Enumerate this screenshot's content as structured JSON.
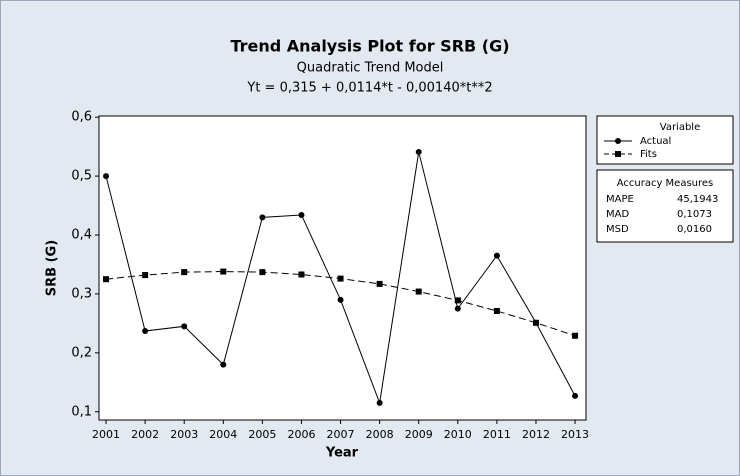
{
  "chart_data": {
    "type": "line",
    "title": "Trend Analysis Plot for SRB (G)",
    "subtitle": "Quadratic Trend Model",
    "equation": "Yt = 0,315 + 0,0114*t - 0,00140*t**2",
    "x_label": "Year",
    "y_label": "SRB (G)",
    "x": [
      2001,
      2002,
      2003,
      2004,
      2005,
      2006,
      2007,
      2008,
      2009,
      2010,
      2011,
      2012,
      2013
    ],
    "series": [
      {
        "name": "Actual",
        "color": "#000000",
        "linestyle": "solid",
        "marker": "circle",
        "values": [
          0.5,
          0.237,
          0.245,
          0.18,
          0.43,
          0.434,
          0.29,
          0.115,
          0.541,
          0.275,
          0.365,
          0.251,
          0.127
        ]
      },
      {
        "name": "Fits",
        "color": "#000000",
        "linestyle": "dashed",
        "marker": "square",
        "values": [
          0.325,
          0.332,
          0.337,
          0.338,
          0.337,
          0.333,
          0.326,
          0.317,
          0.304,
          0.289,
          0.271,
          0.251,
          0.229
        ]
      }
    ],
    "xlim": [
      2000.82,
      2013.28
    ],
    "xticks": [
      2001,
      2002,
      2003,
      2004,
      2005,
      2006,
      2007,
      2008,
      2009,
      2010,
      2011,
      2012,
      2013
    ],
    "ylim": [
      0.086,
      0.602
    ],
    "yticks": [
      {
        "value": 0.1,
        "label": "0,1"
      },
      {
        "value": 0.2,
        "label": "0,2"
      },
      {
        "value": 0.3,
        "label": "0,3"
      },
      {
        "value": 0.4,
        "label": "0,4"
      },
      {
        "value": 0.5,
        "label": "0,5"
      },
      {
        "value": 0.6,
        "label": "0,6"
      }
    ],
    "grid": false,
    "legend_title": "Variable",
    "legend_position": "right",
    "accuracy": {
      "title": "Accuracy Measures",
      "rows": [
        [
          "MAPE",
          "45,1943"
        ],
        [
          "MAD",
          "0,1073"
        ],
        [
          "MSD",
          "0,0160"
        ]
      ]
    }
  }
}
